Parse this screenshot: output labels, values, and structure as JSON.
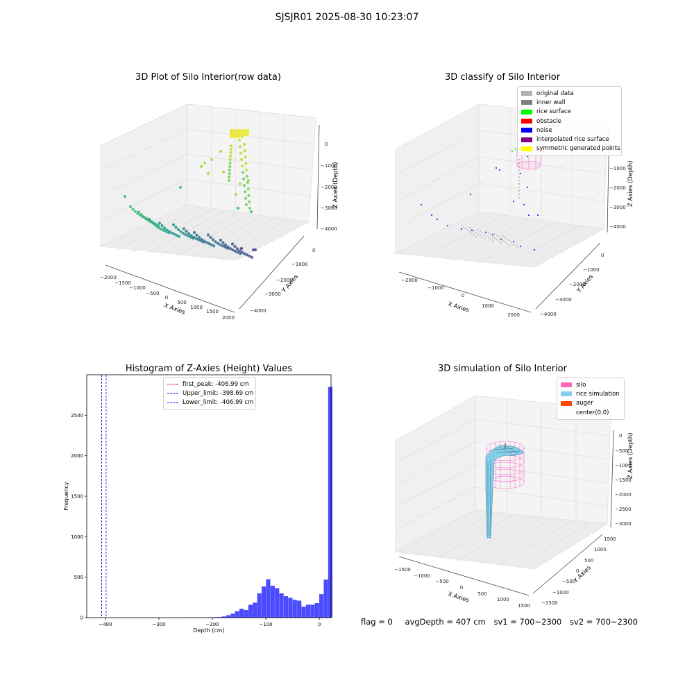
{
  "suptitle": "SJSJR01 2025-08-30 10:23:07",
  "plot1": {
    "title": "3D Plot of Silo Interior(row data)",
    "xlabel": "X Axies",
    "ylabel": "Y Axies",
    "zlabel": "Z Axies (Depth)",
    "xticks": [
      "−2000",
      "−1500",
      "−1000",
      "−500",
      "0",
      "500",
      "1000",
      "1500",
      "2000"
    ],
    "yticks": [
      "0",
      "−1000",
      "−2000",
      "−3000",
      "−4000"
    ],
    "zticks": [
      "0",
      "−1000",
      "−2000",
      "−3000",
      "−4000"
    ]
  },
  "plot2": {
    "title": "3D classify of Silo Interior",
    "xlabel": "X Axies",
    "ylabel": "Y Axies",
    "zlabel": "Z Axies (Depth)",
    "xticks": [
      "−2000",
      "−1000",
      "0",
      "1000",
      "2000"
    ],
    "yticks": [
      "0",
      "−1000",
      "−2000",
      "−3000",
      "−4000"
    ],
    "zticks": [
      "0",
      "−1000",
      "−2000",
      "−3000",
      "−4000"
    ],
    "legend": [
      {
        "label": "original data",
        "color": "#b0b0b0"
      },
      {
        "label": "inner wall",
        "color": "#808080"
      },
      {
        "label": "rice surface",
        "color": "#00ff00"
      },
      {
        "label": "obstacle",
        "color": "#ff0000"
      },
      {
        "label": "noise",
        "color": "#0000ff"
      },
      {
        "label": "interpolated rice surface",
        "color": "#800080"
      },
      {
        "label": "symmetric generated points",
        "color": "#ffff00"
      }
    ]
  },
  "plot4": {
    "title": "3D simulation of Silo Interior",
    "xlabel": "X Axies",
    "ylabel": "Y Axies",
    "zlabel": "Z Axies (Depth)",
    "xticks": [
      "−1500",
      "−1000",
      "−500",
      "0",
      "500",
      "1000",
      "1500"
    ],
    "yticks": [
      "1500",
      "1000",
      "500",
      "0",
      "−500",
      "−1000",
      "−1500"
    ],
    "zticks": [
      "0",
      "−500",
      "−1000",
      "−1500",
      "−2000",
      "−2500",
      "−3000"
    ],
    "legend": [
      {
        "label": "silo",
        "color": "#ff69b4"
      },
      {
        "label": "rice simulation",
        "color": "#87ceeb"
      },
      {
        "label": "auger",
        "color": "#ff4500"
      },
      {
        "label": "center(0,0)",
        "color": ""
      }
    ]
  },
  "status": {
    "flag": "flag = 0",
    "avg": "avgDepth = 407 cm",
    "sv1": "sv1 = 700~2300",
    "sv2": "sv2 = 700~2300"
  },
  "chart_data": {
    "type": "bar",
    "title": "Histogram of Z-Axies (Height) Values",
    "xlabel": "Depth (cm)",
    "ylabel": "Frequency",
    "xlim": [
      -435,
      22
    ],
    "ylim": [
      0,
      3000
    ],
    "xticks": [
      -400,
      -300,
      -200,
      -100,
      0
    ],
    "xtick_labels": [
      "−400",
      "−300",
      "−200",
      "−100",
      "0"
    ],
    "yticks": [
      0,
      500,
      1000,
      1500,
      2000,
      2500
    ],
    "bar_color": "#0000ff",
    "bin_width": 8.3,
    "bin_edges_start": -415,
    "counts": [
      2,
      0,
      0,
      0,
      0,
      0,
      0,
      0,
      0,
      0,
      0,
      0,
      0,
      0,
      0,
      0,
      0,
      0,
      0,
      0,
      0,
      2,
      3,
      3,
      4,
      5,
      6,
      8,
      15,
      30,
      50,
      80,
      110,
      95,
      160,
      185,
      300,
      385,
      475,
      395,
      365,
      300,
      265,
      245,
      220,
      210,
      135,
      160,
      160,
      180,
      290,
      470,
      2850
    ],
    "vlines": [
      {
        "label": "first_peak: -406.99 cm",
        "x": -406.99,
        "color": "#ff0000"
      },
      {
        "label": "Upper_limit: -398.69 cm",
        "x": -398.69,
        "color": "#0000ff"
      },
      {
        "label": "Lower_limit: -406.99 cm",
        "x": -406.99,
        "color": "#0000ff"
      }
    ],
    "legend_position": "upper center"
  }
}
